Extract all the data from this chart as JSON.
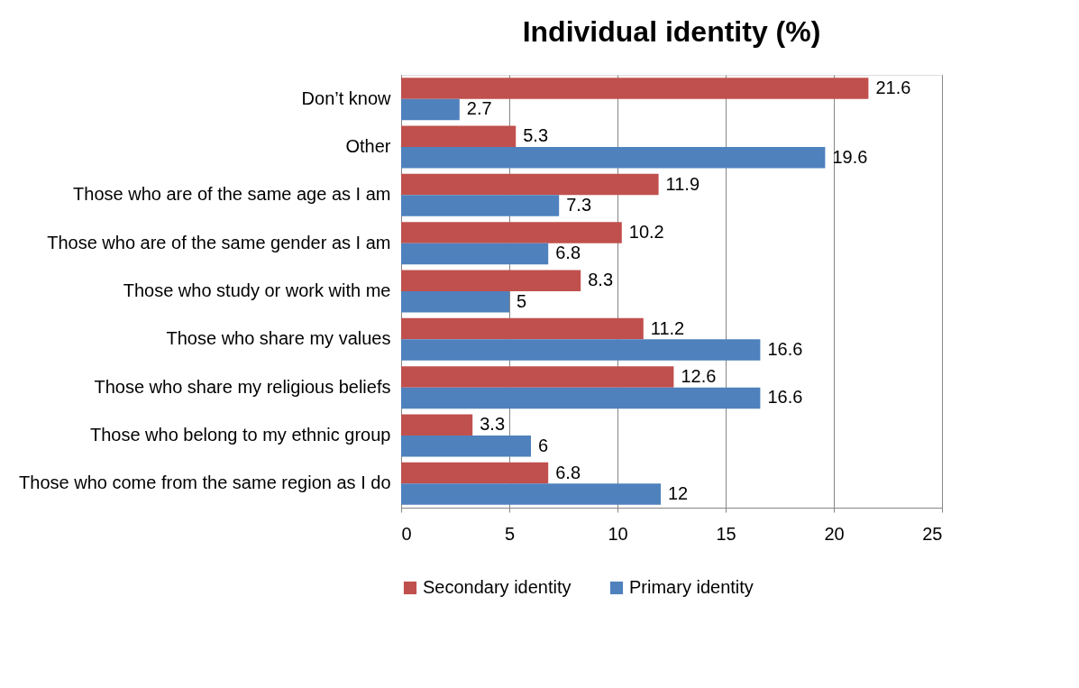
{
  "chart_data": {
    "type": "bar",
    "orientation": "horizontal",
    "title": "Individual identity (%)",
    "categories": [
      "Don’t know",
      "Other",
      "Those who are of the same age as I am",
      "Those who are of the same gender as I am",
      "Those who study or work with me",
      "Those who share my values",
      "Those who share my religious beliefs",
      "Those who belong to my ethnic group",
      "Those who come from the same region as I do"
    ],
    "series": [
      {
        "name": "Secondary identity",
        "color": "#c0504d",
        "values": [
          21.6,
          5.3,
          11.9,
          10.2,
          8.3,
          11.2,
          12.6,
          3.3,
          6.8
        ]
      },
      {
        "name": "Primary identity",
        "color": "#4f81bd",
        "values": [
          2.7,
          19.6,
          7.3,
          6.8,
          5,
          16.6,
          16.6,
          6,
          12
        ]
      }
    ],
    "xlim": [
      0,
      25
    ],
    "xticks": [
      0,
      5,
      10,
      15,
      20,
      25
    ],
    "grid": "x",
    "legend": "bottom",
    "data_labels": true
  }
}
